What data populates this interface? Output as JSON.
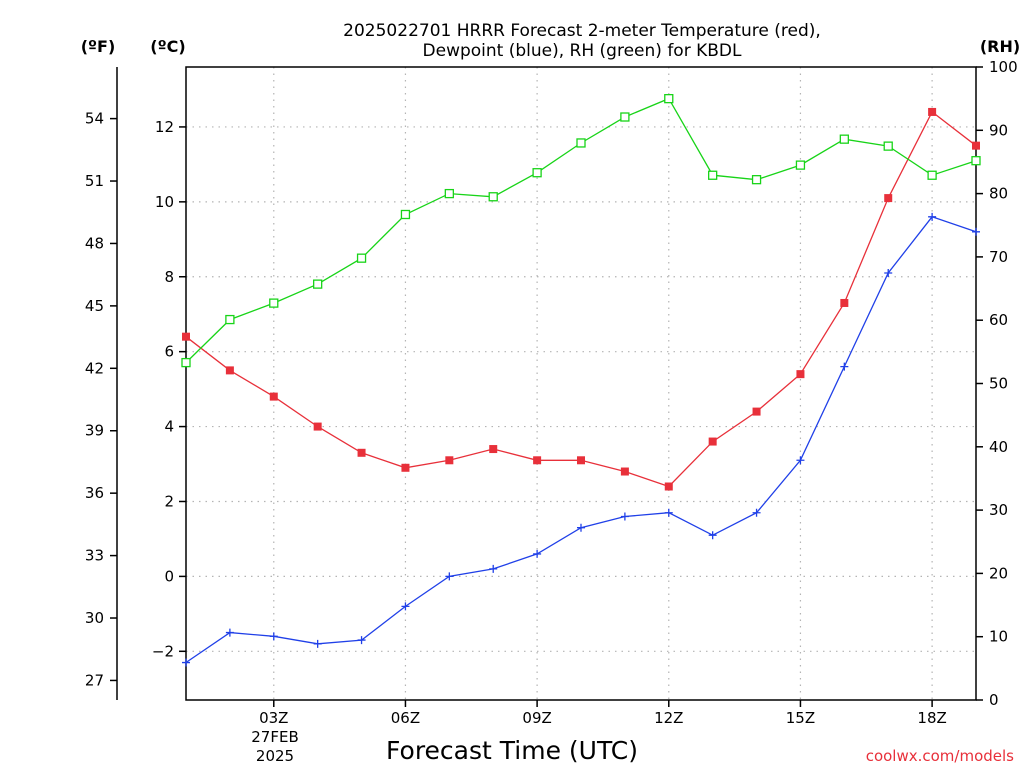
{
  "chart_data": {
    "type": "line",
    "title_line1": "2025022701 HRRR Forecast 2-meter Temperature (red),",
    "title_line2": "Dewpoint (blue), RH (green) for KBDL",
    "xlabel": "Forecast Time (UTC)",
    "date_label": "27FEB",
    "year_label": "2025",
    "credit": "coolwx.com/models",
    "unit_f": "(ºF)",
    "unit_c": "(ºC)",
    "unit_rh": "(RH)",
    "x_hours": [
      1,
      2,
      3,
      4,
      5,
      6,
      7,
      8,
      9,
      10,
      11,
      12,
      13,
      14,
      15,
      16,
      17,
      18,
      19
    ],
    "x_range": [
      1,
      19
    ],
    "x_ticks": [
      {
        "hour": 3,
        "label": "03Z"
      },
      {
        "hour": 6,
        "label": "06Z"
      },
      {
        "hour": 9,
        "label": "09Z"
      },
      {
        "hour": 12,
        "label": "12Z"
      },
      {
        "hour": 15,
        "label": "15Z"
      },
      {
        "hour": 18,
        "label": "18Z"
      }
    ],
    "ylim_c": [
      -3.3,
      13.6
    ],
    "yticks_c": [
      -2,
      0,
      2,
      4,
      6,
      8,
      10,
      12
    ],
    "ylim_f": [
      26.06,
      56.48
    ],
    "yticks_f": [
      27,
      30,
      33,
      36,
      39,
      42,
      45,
      48,
      51,
      54
    ],
    "ylim_rh": [
      0,
      100
    ],
    "yticks_rh": [
      0,
      10,
      20,
      30,
      40,
      50,
      60,
      70,
      80,
      90,
      100
    ],
    "grid": true,
    "series": [
      {
        "name": "Temperature",
        "axis": "c",
        "color": "#e8303a",
        "marker": "filled-square",
        "values": [
          6.4,
          5.5,
          4.8,
          4.0,
          3.3,
          2.9,
          3.1,
          3.4,
          3.1,
          3.1,
          2.8,
          2.4,
          3.6,
          4.4,
          5.4,
          7.3,
          10.1,
          12.4,
          11.5
        ]
      },
      {
        "name": "Dewpoint",
        "axis": "c",
        "color": "#2040e8",
        "marker": "plus",
        "values": [
          -2.3,
          -1.5,
          -1.6,
          -1.8,
          -1.7,
          -0.8,
          0.0,
          0.2,
          0.6,
          1.3,
          1.6,
          1.7,
          1.1,
          1.7,
          3.1,
          5.6,
          8.1,
          9.6,
          9.2
        ]
      },
      {
        "name": "RH",
        "axis": "rh",
        "color": "#18d418",
        "marker": "open-square",
        "values": [
          53.3,
          60.1,
          62.7,
          65.7,
          69.8,
          76.7,
          80.0,
          79.5,
          83.3,
          88.0,
          92.1,
          95.0,
          82.9,
          82.2,
          84.5,
          88.6,
          87.5,
          82.9,
          85.2
        ]
      }
    ]
  }
}
